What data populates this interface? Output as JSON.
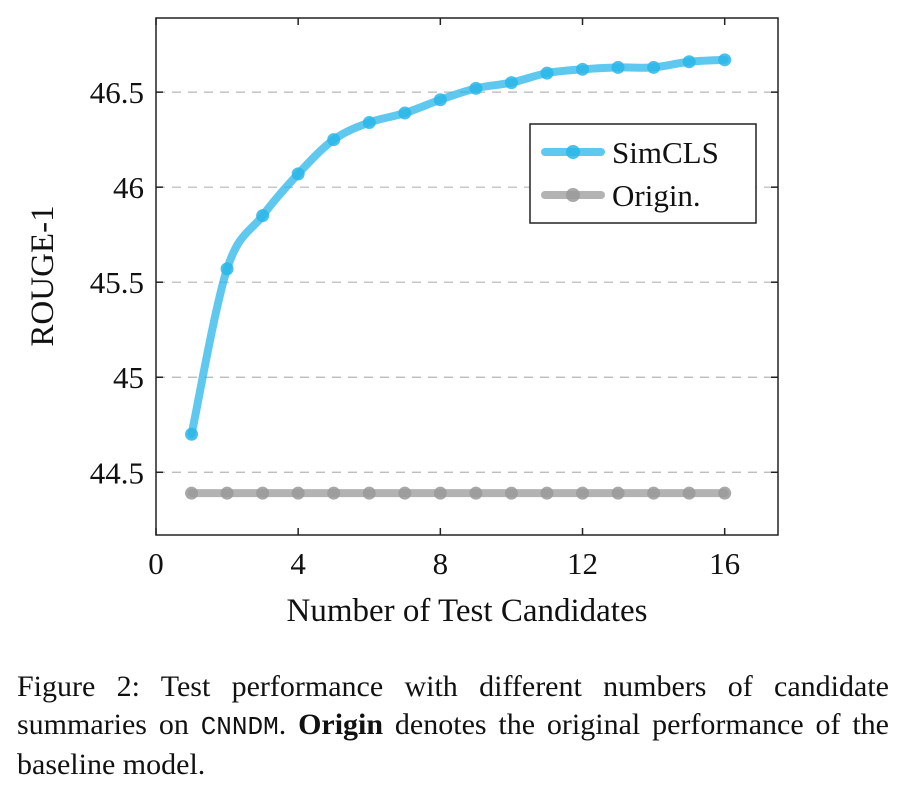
{
  "chart_data": {
    "type": "line",
    "xlabel": "Number of Test Candidates",
    "ylabel": "ROUGE-1",
    "xlim": [
      0,
      17.5
    ],
    "ylim": [
      44.17,
      46.89
    ],
    "xticks": [
      0,
      4,
      8,
      12,
      16
    ],
    "xtick_labels": [
      "0",
      "4",
      "8",
      "12",
      "16"
    ],
    "yticks": [
      44.5,
      45,
      45.5,
      46,
      46.5
    ],
    "ytick_labels": [
      "44.5",
      "45",
      "45.5",
      "46",
      "46.5"
    ],
    "grid": "horizontal dashed",
    "legend_position": "top-right",
    "series": [
      {
        "name": "SimCLS",
        "color": "#29b6e8",
        "x": [
          1,
          2,
          3,
          4,
          5,
          6,
          7,
          8,
          9,
          10,
          11,
          12,
          13,
          14,
          15,
          16
        ],
        "y": [
          44.7,
          45.57,
          45.85,
          46.07,
          46.25,
          46.34,
          46.39,
          46.46,
          46.52,
          46.55,
          46.6,
          46.62,
          46.63,
          46.63,
          46.66,
          46.67
        ]
      },
      {
        "name": "Origin.",
        "color": "#999999",
        "x": [
          1,
          2,
          3,
          4,
          5,
          6,
          7,
          8,
          9,
          10,
          11,
          12,
          13,
          14,
          15,
          16
        ],
        "y": [
          44.39,
          44.39,
          44.39,
          44.39,
          44.39,
          44.39,
          44.39,
          44.39,
          44.39,
          44.39,
          44.39,
          44.39,
          44.39,
          44.39,
          44.39,
          44.39
        ]
      }
    ]
  },
  "caption": {
    "label": "Figure 2:",
    "text_1": " Test performance with different numbers of candidate summaries on ",
    "dataset": "CNNDM",
    "text_2": ". ",
    "bold": "Origin",
    "text_3": " denotes the original performance of the baseline model."
  }
}
